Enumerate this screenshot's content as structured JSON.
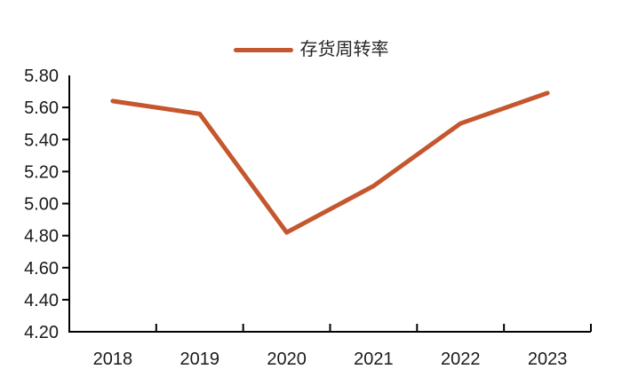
{
  "legend": {
    "label": "存货周转率"
  },
  "chart_data": {
    "type": "line",
    "title": "",
    "categories": [
      "2018",
      "2019",
      "2020",
      "2021",
      "2022",
      "2023"
    ],
    "series": [
      {
        "name": "存货周转率",
        "color": "#C4572E",
        "values": [
          5.64,
          5.56,
          4.82,
          5.11,
          5.5,
          5.69
        ]
      }
    ],
    "xlabel": "",
    "ylabel": "",
    "ylim": [
      4.2,
      5.8
    ],
    "ytick_step": 0.2,
    "ytick_labels": [
      "5.80",
      "5.60",
      "5.40",
      "5.20",
      "5.00",
      "4.80",
      "4.60",
      "4.40",
      "4.20"
    ],
    "grid": false,
    "legend_position": "top-center",
    "axis_color": "#000000",
    "tick_label_color": "#1a1a1a"
  }
}
